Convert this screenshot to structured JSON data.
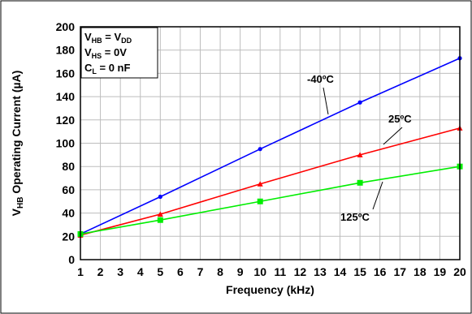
{
  "chart_data": {
    "type": "line",
    "title": "",
    "xlabel": "Frequency (kHz)",
    "ylabel": {
      "prefix": "V",
      "sub": "HB",
      "rest": " Operating Current (µA)"
    },
    "xlim": [
      1,
      20
    ],
    "ylim": [
      0,
      200
    ],
    "x_ticks": [
      1,
      2,
      3,
      4,
      5,
      6,
      7,
      8,
      9,
      10,
      11,
      12,
      13,
      14,
      15,
      16,
      17,
      18,
      19,
      20
    ],
    "y_ticks": [
      0,
      20,
      40,
      60,
      80,
      100,
      120,
      140,
      160,
      180,
      200
    ],
    "grid": true,
    "legend_box": [
      {
        "main": "V",
        "sub": "HB",
        "tail": " = V",
        "sub2": "DD"
      },
      {
        "main": "V",
        "sub": "HS",
        "tail": " = 0V",
        "sub2": ""
      },
      {
        "main": "C",
        "sub": "L",
        "tail": " = 0 nF",
        "sub2": ""
      }
    ],
    "series": [
      {
        "name": "-40ºC",
        "color": "#0000ff",
        "marker": "circle",
        "x": [
          1,
          5,
          10,
          15,
          20
        ],
        "y": [
          22,
          54,
          95,
          135,
          173
        ]
      },
      {
        "name": "25ºC",
        "color": "#ff0000",
        "marker": "triangle",
        "x": [
          1,
          5,
          10,
          15,
          20
        ],
        "y": [
          21,
          39,
          65,
          90,
          113
        ]
      },
      {
        "name": "125ºC",
        "color": "#00ee00",
        "marker": "square",
        "x": [
          1,
          5,
          10,
          15,
          20
        ],
        "y": [
          22,
          34,
          50,
          66,
          80
        ]
      }
    ]
  }
}
